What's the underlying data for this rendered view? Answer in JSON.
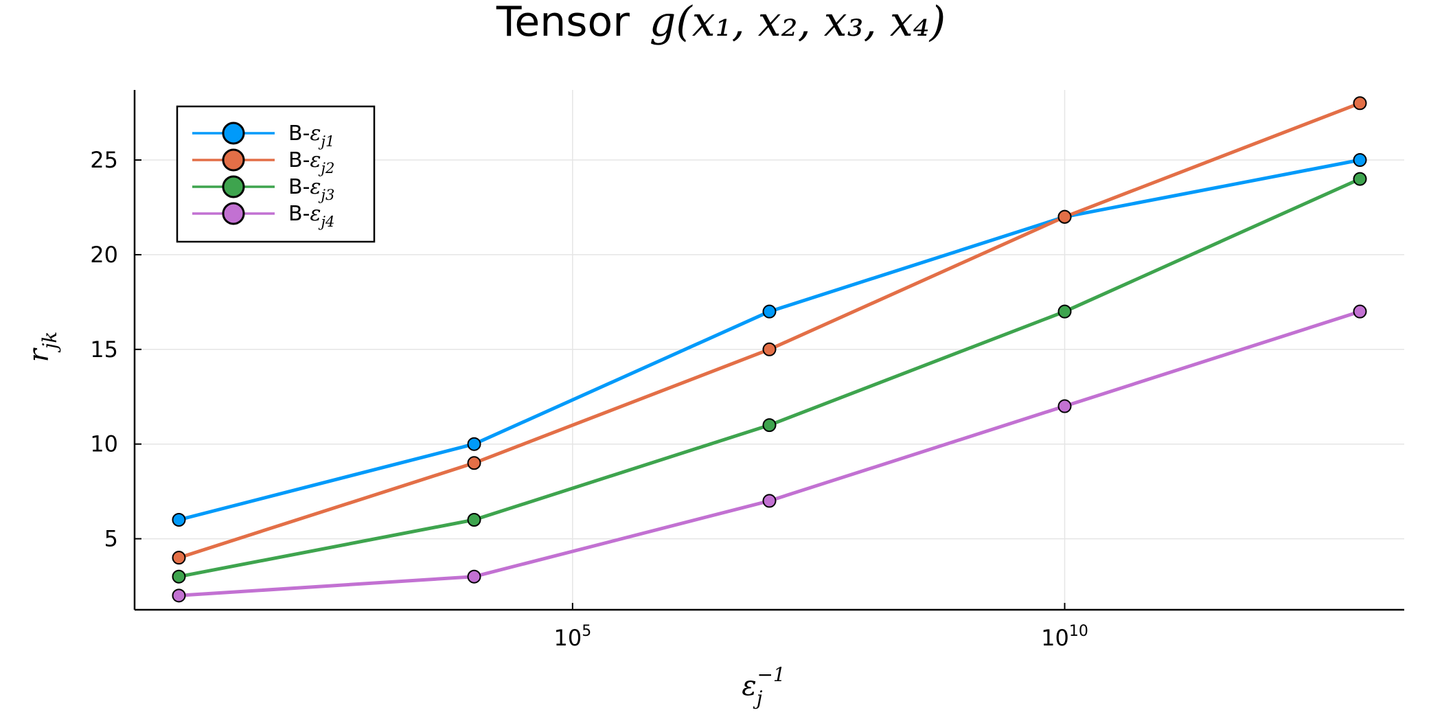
{
  "chart_data": {
    "type": "line",
    "title_prefix": "Tensor",
    "title_math": "g(x₁, x₂, x₃, x₄)",
    "xlabel": "ε",
    "xlabel_sub": "j",
    "xlabel_sup": "−1",
    "ylabel": "r",
    "ylabel_sub": "jk",
    "x_scale": "log10",
    "x": [
      10,
      10000,
      10000000,
      10000000000,
      10000000000000
    ],
    "x_ticks": [
      {
        "value": 100000,
        "base": "10",
        "exp": "5"
      },
      {
        "value": 10000000000,
        "base": "10",
        "exp": "10"
      }
    ],
    "ylim": [
      1.25,
      28.7
    ],
    "y_ticks": [
      5,
      10,
      15,
      20,
      25
    ],
    "grid": true,
    "legend_position": "top-left",
    "series": [
      {
        "name_prefix": "B-",
        "name_symbol": "ε",
        "name_sub": "j1",
        "color": "#009AFA",
        "values": [
          6,
          10,
          17,
          22,
          25
        ]
      },
      {
        "name_prefix": "B-",
        "name_symbol": "ε",
        "name_sub": "j2",
        "color": "#E36F47",
        "values": [
          4,
          9,
          15,
          22,
          28
        ]
      },
      {
        "name_prefix": "B-",
        "name_symbol": "ε",
        "name_sub": "j3",
        "color": "#3EA44E",
        "values": [
          3,
          6,
          11,
          17,
          24
        ]
      },
      {
        "name_prefix": "B-",
        "name_symbol": "ε",
        "name_sub": "j4",
        "color": "#C271D2",
        "values": [
          2,
          3,
          7,
          12,
          17
        ]
      }
    ]
  }
}
